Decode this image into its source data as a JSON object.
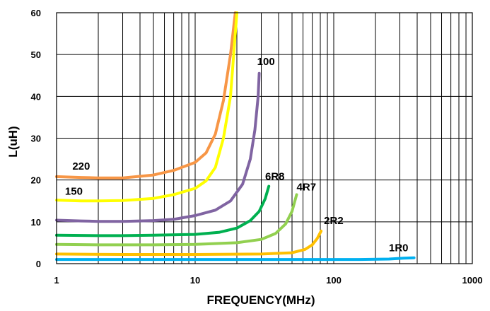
{
  "chart_data": {
    "type": "line",
    "title": "",
    "xlabel": "FREQUENCY(MHz)",
    "ylabel": "L(uH)",
    "xscale": "log",
    "xlim": [
      1,
      1000
    ],
    "ylim": [
      0,
      60
    ],
    "grid": true,
    "x_ticks": [
      "1",
      "10",
      "100",
      "1000"
    ],
    "y_ticks": [
      "0",
      "10",
      "20",
      "30",
      "40",
      "50",
      "60"
    ],
    "legend": "none",
    "series": [
      {
        "name": "220",
        "color": "#F79646",
        "points": [
          [
            1,
            20.8
          ],
          [
            1.5,
            20.6
          ],
          [
            2,
            20.5
          ],
          [
            3,
            20.5
          ],
          [
            5,
            21.2
          ],
          [
            7,
            22.3
          ],
          [
            10,
            24.2
          ],
          [
            12,
            26.5
          ],
          [
            14,
            31
          ],
          [
            16,
            39
          ],
          [
            18,
            50
          ],
          [
            19.5,
            60
          ]
        ]
      },
      {
        "name": "150",
        "color": "#FFFF00",
        "points": [
          [
            1,
            15.2
          ],
          [
            1.5,
            15.0
          ],
          [
            2,
            15.0
          ],
          [
            3,
            15.1
          ],
          [
            5,
            15.6
          ],
          [
            7,
            16.5
          ],
          [
            10,
            18.0
          ],
          [
            12,
            19.8
          ],
          [
            14,
            23
          ],
          [
            16,
            30
          ],
          [
            18,
            40
          ],
          [
            20,
            60
          ]
        ]
      },
      {
        "name": "100",
        "color": "#8064A2",
        "points": [
          [
            1,
            10.4
          ],
          [
            1.5,
            10.2
          ],
          [
            2,
            10.1
          ],
          [
            3,
            10.1
          ],
          [
            5,
            10.3
          ],
          [
            7,
            10.6
          ],
          [
            10,
            11.5
          ],
          [
            14,
            12.8
          ],
          [
            18,
            15
          ],
          [
            22,
            19
          ],
          [
            25,
            25
          ],
          [
            27,
            32
          ],
          [
            28.5,
            40
          ],
          [
            29,
            45.5
          ]
        ]
      },
      {
        "name": "6R8",
        "color": "#00B050",
        "points": [
          [
            1,
            6.8
          ],
          [
            2,
            6.7
          ],
          [
            3,
            6.7
          ],
          [
            5,
            6.8
          ],
          [
            10,
            7.0
          ],
          [
            15,
            7.5
          ],
          [
            20,
            8.5
          ],
          [
            25,
            10.3
          ],
          [
            29,
            12.5
          ],
          [
            32,
            15.5
          ],
          [
            34,
            18.5
          ]
        ]
      },
      {
        "name": "4R7",
        "color": "#92D050",
        "points": [
          [
            1,
            4.6
          ],
          [
            2,
            4.5
          ],
          [
            3,
            4.5
          ],
          [
            5,
            4.5
          ],
          [
            10,
            4.6
          ],
          [
            20,
            5.0
          ],
          [
            30,
            5.8
          ],
          [
            38,
            7.2
          ],
          [
            45,
            9.5
          ],
          [
            50,
            12.5
          ],
          [
            54,
            16.5
          ]
        ]
      },
      {
        "name": "2R2",
        "color": "#FFC000",
        "points": [
          [
            1,
            2.3
          ],
          [
            3,
            2.2
          ],
          [
            10,
            2.2
          ],
          [
            30,
            2.3
          ],
          [
            50,
            2.6
          ],
          [
            62,
            3.4
          ],
          [
            70,
            4.5
          ],
          [
            76,
            6.0
          ],
          [
            81,
            7.8
          ]
        ]
      },
      {
        "name": "1R0",
        "color": "#00B0F0",
        "points": [
          [
            1,
            1.0
          ],
          [
            10,
            1.0
          ],
          [
            50,
            1.0
          ],
          [
            150,
            1.0
          ],
          [
            250,
            1.1
          ],
          [
            320,
            1.3
          ],
          [
            380,
            1.4
          ]
        ]
      }
    ],
    "series_labels": [
      {
        "text": "220",
        "x": 1.3,
        "y": 22.5
      },
      {
        "text": "150",
        "x": 1.15,
        "y": 16.5
      },
      {
        "text": "100",
        "x": 28,
        "y": 47.5
      },
      {
        "text": "6R8",
        "x": 32,
        "y": 20.0
      },
      {
        "text": "4R7",
        "x": 54,
        "y": 17.5
      },
      {
        "text": "2R2",
        "x": 85,
        "y": 9.5
      },
      {
        "text": "1R0",
        "x": 250,
        "y": 3.0
      }
    ]
  }
}
